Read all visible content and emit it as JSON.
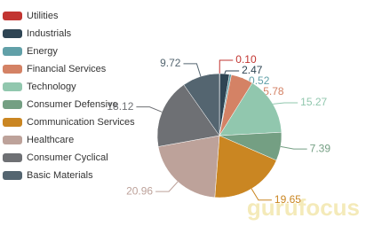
{
  "chart_data": {
    "type": "pie",
    "categories": [
      "Utilities",
      "Industrials",
      "Energy",
      "Financial Services",
      "Technology",
      "Consumer Defensive",
      "Communication Services",
      "Healthcare",
      "Consumer Cyclical",
      "Basic Materials"
    ],
    "values": [
      0.1,
      2.47,
      0.52,
      5.78,
      15.27,
      7.39,
      19.65,
      20.96,
      18.12,
      9.72
    ],
    "value_labels": [
      "0.10",
      "2.47",
      "0.52",
      "5.78",
      "15.27",
      "7.39",
      "19.65",
      "20.96",
      "18.12",
      "9.72"
    ],
    "colors": [
      "#c23531",
      "#2f4554",
      "#61a0a8",
      "#d48265",
      "#91c7ae",
      "#749f83",
      "#ca8622",
      "#bda29a",
      "#6e7074",
      "#546570"
    ],
    "legend": "top-left",
    "watermark": "gurufocus"
  }
}
